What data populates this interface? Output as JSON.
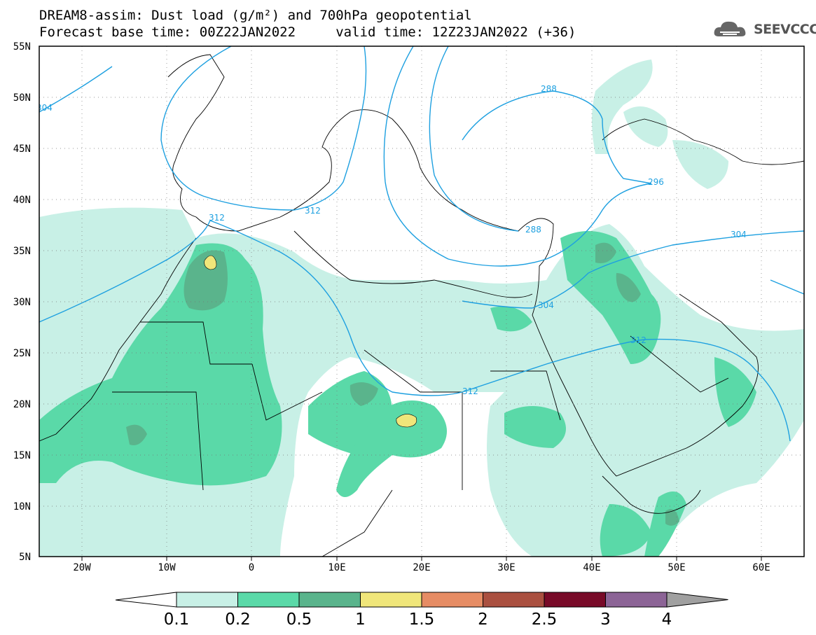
{
  "title": {
    "line1": "DREAM8-assim: Dust load (g/m²) and 700hPa geopotential",
    "line2": "Forecast base time: 00Z22JAN2022     valid time: 12Z23JAN2022 (+36)"
  },
  "logo": {
    "text": "SEEVCCC",
    "icon": "cloud-icon"
  },
  "map": {
    "lat_labels": [
      "55N",
      "50N",
      "45N",
      "40N",
      "35N",
      "30N",
      "25N",
      "20N",
      "15N",
      "10N",
      "5N"
    ],
    "lon_labels": [
      "20W",
      "10W",
      "0",
      "10E",
      "20E",
      "30E",
      "40E",
      "50E",
      "60E"
    ],
    "contour_labels": [
      "304",
      "288",
      "312",
      "312",
      "312",
      "296",
      "288",
      "304",
      "304",
      "312",
      "312"
    ]
  },
  "colorbar": {
    "labels": [
      "0.1",
      "0.2",
      "0.5",
      "1",
      "1.5",
      "2",
      "2.5",
      "3",
      "4"
    ],
    "colors": [
      "#c8f0e6",
      "#5ad9a8",
      "#5ab48c",
      "#f0e67a",
      "#e68c64",
      "#aa5040",
      "#780a28",
      "#8c6496",
      "#a0a0a0"
    ],
    "extend_min_color": "#ffffff"
  },
  "colors": {
    "dust_light": "#c8f0e6",
    "dust_mid": "#5ad9a8",
    "dust_dark": "#5ab48c",
    "dust_yellow": "#f0e67a",
    "contour": "#1ea0e0"
  }
}
